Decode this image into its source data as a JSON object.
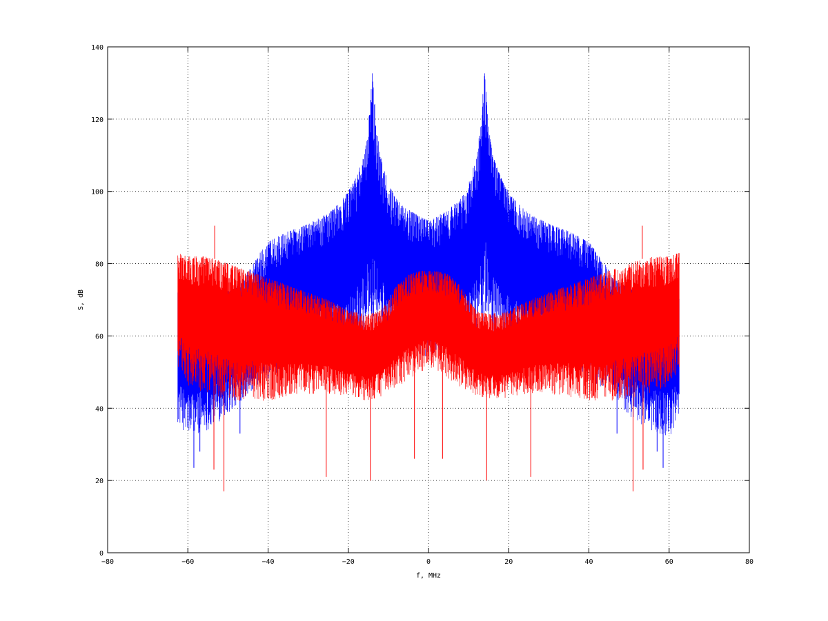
{
  "chart_data": {
    "type": "line",
    "title": "",
    "xlabel": "f, MHz",
    "ylabel": "S, dB",
    "xlim": [
      -80,
      80
    ],
    "ylim": [
      0,
      140
    ],
    "xticks": [
      -80,
      -60,
      -40,
      -20,
      0,
      20,
      40,
      60,
      80
    ],
    "yticks": [
      0,
      20,
      40,
      60,
      80,
      100,
      120,
      140
    ],
    "xtick_labels": [
      "−80",
      "−60",
      "−40",
      "−20",
      "0",
      "20",
      "40",
      "60",
      "80"
    ],
    "ytick_labels": [
      "0",
      "20",
      "40",
      "60",
      "80",
      "100",
      "120",
      "140"
    ],
    "grid": true,
    "legend": "none",
    "x_range": [
      -62.5,
      62.5
    ],
    "series": [
      {
        "color": "#0000ff",
        "envelope_upper": {
          "x": [
            -62.5,
            -60,
            -55,
            -50,
            -46,
            -44,
            -42,
            -40,
            -35,
            -30,
            -25,
            -22,
            -20,
            -18,
            -16,
            -15,
            -14.5,
            -14,
            -13.5,
            -13,
            -12,
            -10,
            -8,
            -5,
            -2,
            0,
            2,
            5,
            8,
            10,
            12,
            13,
            13.5,
            14,
            14.5,
            15,
            16,
            18,
            20,
            22,
            25,
            30,
            35,
            40,
            42,
            44,
            46,
            50,
            55,
            60,
            62.5
          ],
          "y": [
            72,
            72,
            72,
            73,
            76,
            80,
            83,
            86,
            89,
            91,
            94,
            97,
            100,
            104,
            110,
            118,
            126,
            133,
            126,
            118,
            110,
            102,
            98,
            95,
            93,
            92,
            93,
            95,
            98,
            102,
            110,
            118,
            126,
            133,
            126,
            118,
            110,
            104,
            100,
            97,
            94,
            91,
            89,
            86,
            83,
            80,
            76,
            73,
            72,
            72,
            72
          ]
        },
        "envelope_lower": {
          "x": [
            -62.5,
            -60,
            -55,
            -50,
            -45,
            -40,
            -35,
            -30,
            -25,
            -20,
            -16,
            -14,
            -12,
            -10,
            -5,
            0,
            5,
            10,
            12,
            14,
            16,
            20,
            25,
            30,
            35,
            40,
            45,
            50,
            55,
            60,
            62.5
          ],
          "y": [
            40,
            36,
            38,
            42,
            48,
            52,
            55,
            58,
            60,
            62,
            65,
            70,
            65,
            62,
            60,
            58,
            60,
            62,
            65,
            70,
            65,
            62,
            60,
            58,
            55,
            52,
            48,
            42,
            38,
            36,
            40
          ]
        },
        "spikes_down": [
          [
            -58.5,
            23.5
          ],
          [
            -57,
            28
          ],
          [
            -47,
            33
          ],
          [
            -13.8,
            48
          ],
          [
            -12,
            50
          ],
          [
            12,
            50
          ],
          [
            13.8,
            48
          ],
          [
            47,
            33
          ],
          [
            57,
            28
          ],
          [
            58.5,
            23.5
          ]
        ]
      },
      {
        "color": "#ff0000",
        "envelope_upper": {
          "x": [
            -62.5,
            -60,
            -55,
            -50,
            -45,
            -40,
            -35,
            -30,
            -25,
            -20,
            -15,
            -12,
            -10,
            -8,
            -5,
            -2,
            0,
            2,
            5,
            8,
            10,
            12,
            15,
            20,
            25,
            30,
            35,
            40,
            45,
            50,
            55,
            60,
            62.5
          ],
          "y": [
            83,
            82,
            82,
            80,
            78,
            76,
            74,
            72,
            70,
            67,
            66,
            67,
            70,
            74,
            77,
            78,
            78,
            78,
            77,
            74,
            70,
            67,
            66,
            67,
            70,
            72,
            74,
            76,
            78,
            80,
            82,
            82,
            83
          ]
        },
        "envelope_lower": {
          "x": [
            -62.5,
            -60,
            -55,
            -50,
            -45,
            -40,
            -35,
            -30,
            -25,
            -20,
            -15,
            -10,
            -5,
            0,
            5,
            10,
            15,
            20,
            25,
            30,
            35,
            40,
            45,
            50,
            55,
            60,
            62.5
          ],
          "y": [
            55,
            50,
            48,
            46,
            46,
            46,
            47,
            48,
            48,
            47,
            46,
            48,
            52,
            55,
            52,
            48,
            46,
            47,
            48,
            48,
            47,
            46,
            46,
            46,
            48,
            50,
            55
          ]
        },
        "spikes_up": [
          [
            -53.3,
            90.5
          ],
          [
            53.3,
            90.5
          ]
        ],
        "spikes_down": [
          [
            -53.5,
            23
          ],
          [
            -51,
            17
          ],
          [
            -25.5,
            21
          ],
          [
            -14.5,
            20
          ],
          [
            -3.5,
            26
          ],
          [
            3.5,
            26
          ],
          [
            14.5,
            20
          ],
          [
            25.5,
            21
          ],
          [
            51,
            17
          ],
          [
            53.5,
            23
          ]
        ]
      }
    ]
  }
}
